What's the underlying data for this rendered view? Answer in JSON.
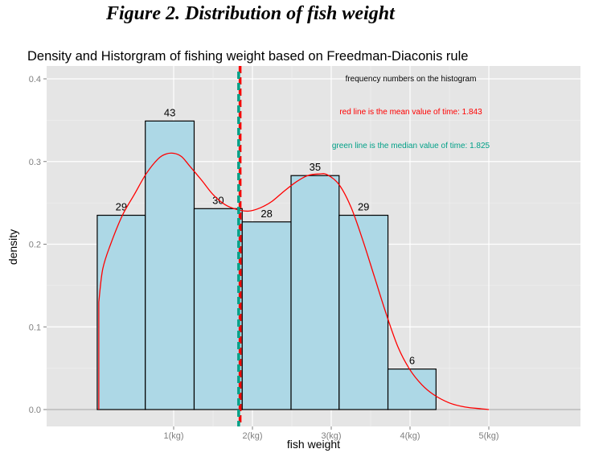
{
  "figure_caption": "Figure 2. Distribution of fish weight",
  "colors": {
    "panel_bg": "#e5e5e5",
    "grid": "#ffffff",
    "bar_fill": "#add8e6",
    "bar_stroke": "#000000",
    "density_line": "#ff0000",
    "mean_line": "#ff0000",
    "median_line": "#00a087"
  },
  "chart_data": {
    "type": "bar",
    "title": "Density and Historgram of fishing weight based on Freedman-Diaconis rule",
    "xlabel": "fish weight",
    "ylabel": "density",
    "ylim": [
      0,
      0.4
    ],
    "yticks": [
      "0.0",
      "0.1",
      "0.2",
      "0.3",
      "0.4"
    ],
    "xticks": [
      "1(kg)",
      "2(kg)",
      "3(kg)",
      "4(kg)",
      "5(kg)"
    ],
    "xtick_values": [
      1,
      2,
      3,
      4,
      5
    ],
    "xlim": [
      -0.6,
      6.1
    ],
    "bins": [
      {
        "start": 0.03,
        "end": 0.64,
        "density": 0.235,
        "count": "29"
      },
      {
        "start": 0.64,
        "end": 1.26,
        "density": 0.349,
        "count": "43"
      },
      {
        "start": 1.26,
        "end": 1.87,
        "density": 0.243,
        "count": "30"
      },
      {
        "start": 1.87,
        "end": 2.49,
        "density": 0.227,
        "count": "28"
      },
      {
        "start": 2.49,
        "end": 3.1,
        "density": 0.283,
        "count": "35"
      },
      {
        "start": 3.1,
        "end": 3.72,
        "density": 0.235,
        "count": "29"
      },
      {
        "start": 3.72,
        "end": 4.33,
        "density": 0.049,
        "count": "6"
      }
    ],
    "density_curve": {
      "x": [
        0.05,
        0.1,
        0.2,
        0.35,
        0.5,
        0.65,
        0.8,
        0.9,
        1.0,
        1.1,
        1.2,
        1.35,
        1.5,
        1.65,
        1.8,
        1.95,
        2.1,
        2.25,
        2.4,
        2.55,
        2.7,
        2.85,
        2.95,
        3.1,
        3.25,
        3.4,
        3.55,
        3.7,
        3.85,
        4.0,
        4.15,
        4.3,
        4.5,
        4.7,
        4.9,
        5.0
      ],
      "y": [
        0.13,
        0.17,
        0.2,
        0.235,
        0.26,
        0.285,
        0.303,
        0.309,
        0.31,
        0.306,
        0.295,
        0.278,
        0.26,
        0.248,
        0.242,
        0.24,
        0.244,
        0.252,
        0.264,
        0.275,
        0.283,
        0.285,
        0.284,
        0.272,
        0.245,
        0.205,
        0.16,
        0.115,
        0.075,
        0.048,
        0.03,
        0.018,
        0.008,
        0.003,
        0.001,
        0.0
      ]
    },
    "mean": 1.843,
    "median": 1.825,
    "annotations": [
      {
        "text": "frequency numbers on the histogram",
        "color": "#000000"
      },
      {
        "text": "red line is the mean value of time: 1.843",
        "color": "#ff0000"
      },
      {
        "text": "green line is the median value of time: 1.825",
        "color": "#00a087"
      }
    ]
  }
}
